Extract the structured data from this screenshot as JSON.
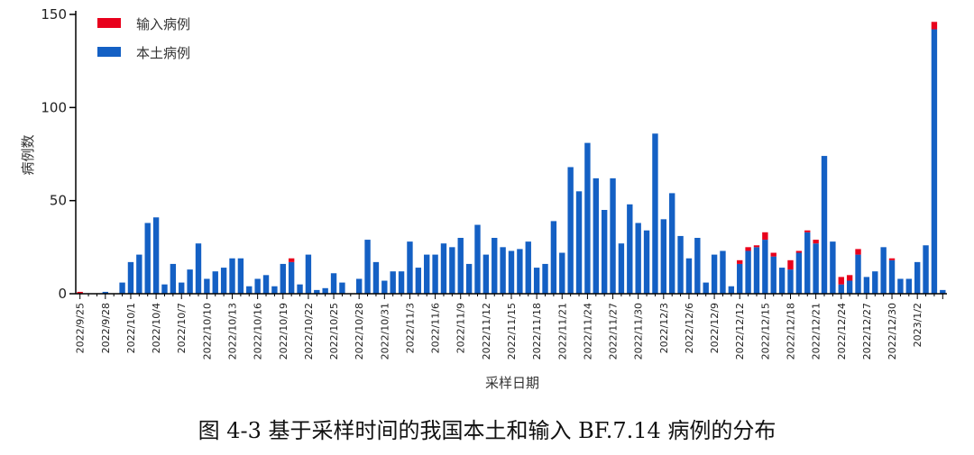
{
  "caption": "图 4-3 基于采样时间的我国本土和输入 BF.7.14 病例的分布",
  "colors": {
    "imported": "#e8001c",
    "local": "#1460c4",
    "axis": "#000000"
  },
  "chart_data": {
    "type": "bar",
    "stacked": true,
    "xlabel": "采样日期",
    "ylabel": "病例数",
    "ylim": [
      0,
      150
    ],
    "yticks": [
      0,
      50,
      100,
      150
    ],
    "legend_position": "top-left",
    "x_start": "2022/9/25",
    "x_tick_labels": [
      "2022/9/25",
      "2022/9/28",
      "2022/10/1",
      "2022/10/4",
      "2022/10/7",
      "2022/10/10",
      "2022/10/13",
      "2022/10/16",
      "2022/10/19",
      "2022/10/22",
      "2022/10/25",
      "2022/10/28",
      "2022/10/31",
      "2022/11/3",
      "2022/11/6",
      "2022/11/9",
      "2022/11/12",
      "2022/11/15",
      "2022/11/18",
      "2022/11/21",
      "2022/11/24",
      "2022/11/27",
      "2022/11/30",
      "2022/12/3",
      "2022/12/6",
      "2022/12/9",
      "2022/12/12",
      "2022/12/15",
      "2022/12/18",
      "2022/12/21",
      "2022/12/24",
      "2022/12/27",
      "2022/12/30",
      "2023/1/2"
    ],
    "series": [
      {
        "name": "本土病例",
        "values": [
          0,
          0,
          0,
          1,
          0,
          6,
          17,
          21,
          38,
          41,
          5,
          16,
          6,
          13,
          27,
          8,
          12,
          14,
          19,
          19,
          4,
          8,
          10,
          4,
          16,
          17,
          5,
          21,
          2,
          3,
          11,
          6,
          0,
          8,
          29,
          17,
          7,
          12,
          12,
          28,
          14,
          21,
          21,
          27,
          25,
          30,
          16,
          37,
          21,
          30,
          25,
          23,
          24,
          28,
          14,
          16,
          39,
          22,
          68,
          55,
          81,
          62,
          45,
          62,
          27,
          48,
          38,
          34,
          86,
          40,
          54,
          31,
          19,
          30,
          6,
          21,
          23,
          4,
          16,
          23,
          25,
          29,
          20,
          14,
          13,
          22,
          33,
          27,
          74,
          28,
          5,
          7,
          21,
          9,
          12,
          25,
          18,
          8,
          8,
          17,
          26,
          142,
          2
        ]
      },
      {
        "name": "输入病例",
        "values": [
          1,
          0,
          0,
          0,
          0,
          0,
          0,
          0,
          0,
          0,
          0,
          0,
          0,
          0,
          0,
          0,
          0,
          0,
          0,
          0,
          0,
          0,
          0,
          0,
          0,
          2,
          0,
          0,
          0,
          0,
          0,
          0,
          0,
          0,
          0,
          0,
          0,
          0,
          0,
          0,
          0,
          0,
          0,
          0,
          0,
          0,
          0,
          0,
          0,
          0,
          0,
          0,
          0,
          0,
          0,
          0,
          0,
          0,
          0,
          0,
          0,
          0,
          0,
          0,
          0,
          0,
          0,
          0,
          0,
          0,
          0,
          0,
          0,
          0,
          0,
          0,
          0,
          0,
          2,
          2,
          1,
          4,
          2,
          0,
          5,
          1,
          1,
          2,
          0,
          0,
          4,
          3,
          3,
          0,
          0,
          0,
          1,
          0,
          0,
          0,
          0,
          4,
          0
        ]
      }
    ]
  }
}
